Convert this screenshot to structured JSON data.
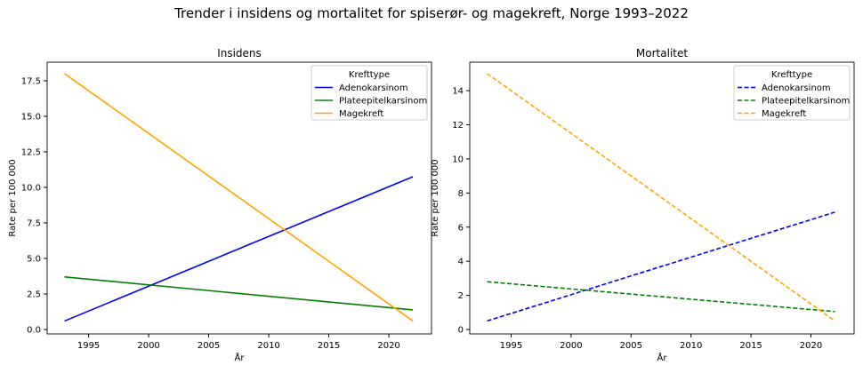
{
  "suptitle": "Trender i insidens og mortalitet for spiserør- og magekreft, Norge 1993–2022",
  "chart_data": [
    {
      "type": "line",
      "title": "Insidens",
      "xlabel": "År",
      "ylabel": "Rate per 100 000",
      "xlim": [
        1991.55,
        2023.55
      ],
      "ylim": [
        -0.31,
        18.81
      ],
      "xticks": [
        1995,
        2000,
        2005,
        2010,
        2015,
        2020
      ],
      "yticks": [
        "0.0",
        "2.5",
        "5.0",
        "7.5",
        "10.0",
        "12.5",
        "15.0",
        "17.5"
      ],
      "grid": false,
      "legend": {
        "title": "Krefttype",
        "placement": "top-right"
      },
      "line_style": "solid",
      "x": [
        1993,
        2022
      ],
      "series": [
        {
          "name": "Adenokarsinom",
          "color": "#0000ff",
          "values": [
            0.6,
            10.75
          ]
        },
        {
          "name": "Plateepitelkarsinom",
          "color": "#008000",
          "values": [
            3.7,
            1.38
          ]
        },
        {
          "name": "Magekreft",
          "color": "#ffa500",
          "values": [
            18.0,
            0.6
          ]
        }
      ]
    },
    {
      "type": "line",
      "title": "Mortalitet",
      "xlabel": "År",
      "ylabel": "Rate per 100 000",
      "xlim": [
        1991.55,
        2023.6
      ],
      "ylim": [
        -0.26,
        15.67
      ],
      "xticks": [
        1995,
        2000,
        2005,
        2010,
        2015,
        2020
      ],
      "yticks": [
        "0",
        "2",
        "4",
        "6",
        "8",
        "10",
        "12",
        "14"
      ],
      "grid": false,
      "legend": {
        "title": "Krefttype",
        "placement": "top-right"
      },
      "line_style": "dashed",
      "x": [
        1993,
        2022
      ],
      "series": [
        {
          "name": "Adenokarsinom",
          "color": "#0000ff",
          "values": [
            0.5,
            6.88
          ]
        },
        {
          "name": "Plateepitelkarsinom",
          "color": "#008000",
          "values": [
            2.8,
            1.05
          ]
        },
        {
          "name": "Magekreft",
          "color": "#ffa500",
          "values": [
            15.0,
            0.5
          ]
        }
      ]
    }
  ]
}
